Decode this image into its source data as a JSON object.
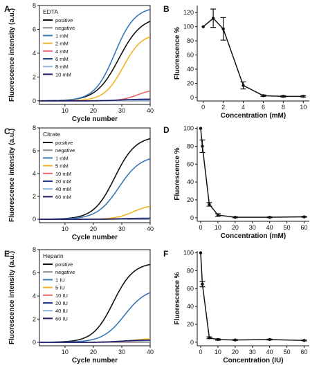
{
  "chart_data": [
    {
      "panel": "A",
      "type": "line",
      "legend_title": "EDTA",
      "legend_position": "top-left",
      "xlabel": "Cycle number",
      "ylabel": "Fluorescence intensity (a.u.)",
      "xlim": [
        1,
        40
      ],
      "ylim": [
        -0.3,
        8
      ],
      "xticks": [
        10,
        20,
        30,
        40
      ],
      "yticks": [
        0,
        2,
        4,
        6,
        8
      ],
      "series": [
        {
          "name": "positive",
          "color": "#111111",
          "plateau": 7.1,
          "midpoint": 29,
          "steepness": 0.25
        },
        {
          "name": "negative",
          "color": "#8c8c8c",
          "plateau": 0.0,
          "midpoint": 30,
          "steepness": 0.3
        },
        {
          "name": "1 mM",
          "color": "#3a77b6",
          "plateau": 7.9,
          "midpoint": 27.5,
          "steepness": 0.28
        },
        {
          "name": "2 mM",
          "color": "#f0b323",
          "plateau": 5.7,
          "midpoint": 30.5,
          "steepness": 0.3
        },
        {
          "name": "4 mM",
          "color": "#e8656a",
          "plateau": 1.0,
          "midpoint": 35.5,
          "steepness": 0.35
        },
        {
          "name": "6 mM",
          "color": "#1e3c8c",
          "plateau": 0.1,
          "midpoint": 30,
          "steepness": 0.3
        },
        {
          "name": "8 mM",
          "color": "#8fb4e0",
          "plateau": 0.05,
          "midpoint": 30,
          "steepness": 0.3
        },
        {
          "name": "10 mM",
          "color": "#1a1a66",
          "plateau": 0.15,
          "midpoint": 30,
          "steepness": 0.3
        }
      ]
    },
    {
      "panel": "B",
      "type": "line",
      "xlabel": "Concentration (mM)",
      "ylabel": "Fluorescence %",
      "xlim": [
        -0.6,
        10.6
      ],
      "ylim": [
        -5,
        130
      ],
      "xticks": [
        0,
        2,
        4,
        6,
        8,
        10
      ],
      "yticks": [
        0,
        20,
        40,
        60,
        80,
        100,
        120
      ],
      "x": [
        0,
        1,
        2,
        4,
        6,
        8,
        10
      ],
      "y": [
        100,
        112,
        97,
        17,
        2.5,
        1.5,
        1.5
      ],
      "error": [
        0,
        13,
        16,
        5,
        1,
        1,
        1
      ]
    },
    {
      "panel": "C",
      "type": "line",
      "legend_title": "Citrate",
      "legend_position": "top-left",
      "xlabel": "Cycle number",
      "ylabel": "Fluorescence intensity (a.u.)",
      "xlim": [
        1,
        40
      ],
      "ylim": [
        -0.3,
        8
      ],
      "xticks": [
        10,
        20,
        30,
        40
      ],
      "yticks": [
        0,
        2,
        4,
        6,
        8
      ],
      "series": [
        {
          "name": "positive",
          "color": "#111111",
          "plateau": 7.3,
          "midpoint": 27.5,
          "steepness": 0.27
        },
        {
          "name": "negative",
          "color": "#8c8c8c",
          "plateau": 0.0,
          "midpoint": 30,
          "steepness": 0.3
        },
        {
          "name": "1 mM",
          "color": "#3a77b6",
          "plateau": 5.6,
          "midpoint": 29,
          "steepness": 0.26
        },
        {
          "name": "5 mM",
          "color": "#f0b323",
          "plateau": 1.3,
          "midpoint": 34,
          "steepness": 0.32
        },
        {
          "name": "10 mM",
          "color": "#e8656a",
          "plateau": 0.08,
          "midpoint": 30,
          "steepness": 0.3
        },
        {
          "name": "20 mM",
          "color": "#1e3c8c",
          "plateau": 0.05,
          "midpoint": 30,
          "steepness": 0.3
        },
        {
          "name": "40 mM",
          "color": "#8fb4e0",
          "plateau": 0.05,
          "midpoint": 30,
          "steepness": 0.3
        },
        {
          "name": "60 mM",
          "color": "#1a1a66",
          "plateau": 0.1,
          "midpoint": 30,
          "steepness": 0.3
        }
      ]
    },
    {
      "panel": "D",
      "type": "line",
      "xlabel": "Concentration (mM)",
      "ylabel": "Fluorescence %",
      "xlim": [
        -2,
        63
      ],
      "ylim": [
        -4,
        102
      ],
      "xticks": [
        0,
        10,
        20,
        30,
        40,
        50,
        60
      ],
      "yticks": [
        0,
        20,
        40,
        60,
        80,
        100
      ],
      "x": [
        0,
        1,
        5,
        10,
        20,
        40,
        60
      ],
      "y": [
        100,
        80,
        15,
        3,
        0.5,
        0.5,
        1
      ],
      "error": [
        0,
        7,
        2,
        1.5,
        0.5,
        0.5,
        0.5
      ]
    },
    {
      "panel": "E",
      "type": "line",
      "legend_title": "Heparin",
      "legend_position": "top-left",
      "xlabel": "Cycle number",
      "ylabel": "Fluorescence intensity (a.u.)",
      "xlim": [
        1,
        40
      ],
      "ylim": [
        -0.3,
        8
      ],
      "xticks": [
        10,
        20,
        30,
        40
      ],
      "yticks": [
        0,
        2,
        4,
        6,
        8
      ],
      "series": [
        {
          "name": "positive",
          "color": "#111111",
          "plateau": 6.9,
          "midpoint": 27,
          "steepness": 0.28
        },
        {
          "name": "negative",
          "color": "#8c8c8c",
          "plateau": 0.0,
          "midpoint": 30,
          "steepness": 0.3
        },
        {
          "name": "1 IU",
          "color": "#3a77b6",
          "plateau": 4.7,
          "midpoint": 31,
          "steepness": 0.26
        },
        {
          "name": "5 IU",
          "color": "#f0b323",
          "plateau": 0.35,
          "midpoint": 34,
          "steepness": 0.3
        },
        {
          "name": "10 IU",
          "color": "#e8656a",
          "plateau": 0.15,
          "midpoint": 32,
          "steepness": 0.3
        },
        {
          "name": "20 IU",
          "color": "#1e3c8c",
          "plateau": 0.2,
          "midpoint": 30,
          "steepness": 0.3
        },
        {
          "name": "40 IU",
          "color": "#8fb4e0",
          "plateau": 0.15,
          "midpoint": 30,
          "steepness": 0.3
        },
        {
          "name": "60 IU",
          "color": "#1a1a66",
          "plateau": 0.2,
          "midpoint": 30,
          "steepness": 0.3
        }
      ]
    },
    {
      "panel": "F",
      "type": "line",
      "xlabel": "Concentration (IU)",
      "ylabel": "Fluorescence %",
      "xlim": [
        -2,
        63
      ],
      "ylim": [
        -4,
        102
      ],
      "xticks": [
        0,
        10,
        20,
        30,
        40,
        50,
        60
      ],
      "yticks": [
        0,
        20,
        40,
        60,
        80,
        100
      ],
      "x": [
        0,
        1,
        5,
        10,
        20,
        40,
        60
      ],
      "y": [
        100,
        65,
        5,
        3,
        2.5,
        3,
        2
      ],
      "error": [
        0,
        3,
        1,
        0.8,
        0.5,
        0.5,
        0.5
      ]
    }
  ]
}
